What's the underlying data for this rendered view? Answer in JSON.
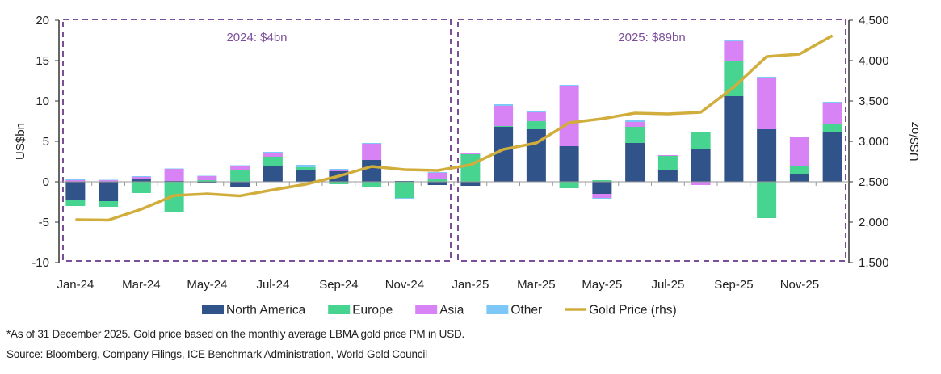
{
  "chart_data": {
    "type": "bar",
    "subtype": "stacked bar with line overlay",
    "categories": [
      "Jan-24",
      "Feb-24",
      "Mar-24",
      "Apr-24",
      "May-24",
      "Jun-24",
      "Jul-24",
      "Aug-24",
      "Sep-24",
      "Oct-24",
      "Nov-24",
      "Dec-24",
      "Jan-25",
      "Feb-25",
      "Mar-25",
      "Apr-25",
      "May-25",
      "Jun-25",
      "Jul-25",
      "Aug-25",
      "Sep-25",
      "Oct-25",
      "Nov-25",
      "Dec-25"
    ],
    "x_tick_labels": [
      "Jan-24",
      "Mar-24",
      "May-24",
      "Jul-24",
      "Sep-24",
      "Nov-24",
      "Jan-25",
      "Mar-25",
      "May-25",
      "Jul-25",
      "Sep-25",
      "Nov-25"
    ],
    "ylabel": "US$bn",
    "ylim": [
      -10,
      20
    ],
    "yticks": [
      "-10",
      "-5",
      "0",
      "5",
      "10",
      "15",
      "20"
    ],
    "y2label": "US$/oz",
    "y2lim": [
      1500,
      4500
    ],
    "y2ticks": [
      "1,500",
      "2,000",
      "2,500",
      "3,000",
      "3,500",
      "4,000",
      "4,500"
    ],
    "grid": false,
    "legend_placement": "bottom",
    "series": [
      {
        "name": "North America",
        "type": "bar",
        "color": "#30548a",
        "values": [
          -2.3,
          -2.4,
          0.4,
          0.1,
          -0.2,
          -0.6,
          2.0,
          1.4,
          1.3,
          2.7,
          0.1,
          -0.4,
          -0.5,
          6.8,
          6.5,
          4.4,
          -1.5,
          4.8,
          1.4,
          4.1,
          10.6,
          6.5,
          1.0,
          6.2
        ]
      },
      {
        "name": "Europe",
        "type": "bar",
        "color": "#47d491",
        "values": [
          -0.7,
          -0.7,
          -1.4,
          -3.7,
          0.2,
          1.4,
          1.1,
          0.4,
          -0.3,
          -0.6,
          -2.0,
          0.3,
          3.4,
          0.1,
          1.0,
          -0.8,
          0.2,
          2.0,
          1.8,
          2.0,
          4.4,
          -4.5,
          1.0,
          1.0
        ]
      },
      {
        "name": "Asia",
        "type": "bar",
        "color": "#d883f5",
        "values": [
          0.2,
          0.2,
          0.2,
          1.5,
          0.5,
          0.6,
          0.4,
          0.0,
          0.2,
          2.0,
          0.0,
          0.8,
          0.1,
          2.5,
          1.1,
          7.4,
          -0.5,
          0.6,
          0.1,
          -0.4,
          2.4,
          6.4,
          3.6,
          2.5
        ]
      },
      {
        "name": "Other",
        "type": "bar",
        "color": "#7ec8f8",
        "values": [
          0.1,
          0.05,
          0.1,
          0.05,
          0.05,
          0.05,
          0.2,
          0.3,
          0.1,
          0.1,
          -0.1,
          0.1,
          0.1,
          0.2,
          0.2,
          0.2,
          -0.1,
          0.2,
          -0.05,
          0.0,
          0.2,
          0.1,
          0.0,
          0.2
        ]
      },
      {
        "name": "Gold Price (rhs)",
        "type": "line",
        "axis": "right",
        "color": "#d1ad3c",
        "values": [
          2030,
          2025,
          2160,
          2330,
          2350,
          2325,
          2400,
          2470,
          2570,
          2690,
          2650,
          2640,
          2710,
          2900,
          2980,
          3230,
          3280,
          3350,
          3340,
          3360,
          3670,
          4050,
          4080,
          4310
        ]
      }
    ],
    "annotations": [
      {
        "text": "2024: $4bn",
        "range": [
          "Jan-24",
          "Dec-24"
        ]
      },
      {
        "text": "2025: $89bn",
        "range": [
          "Jan-25",
          "Dec-25"
        ]
      }
    ],
    "annotation_color": "#7b4e9a"
  },
  "footnote": "*As of 31 December 2025. Gold price based on the monthly average LBMA gold price PM in USD.",
  "source": "Source: Bloomberg, Company Filings, ICE Benchmark Administration, World Gold Council"
}
